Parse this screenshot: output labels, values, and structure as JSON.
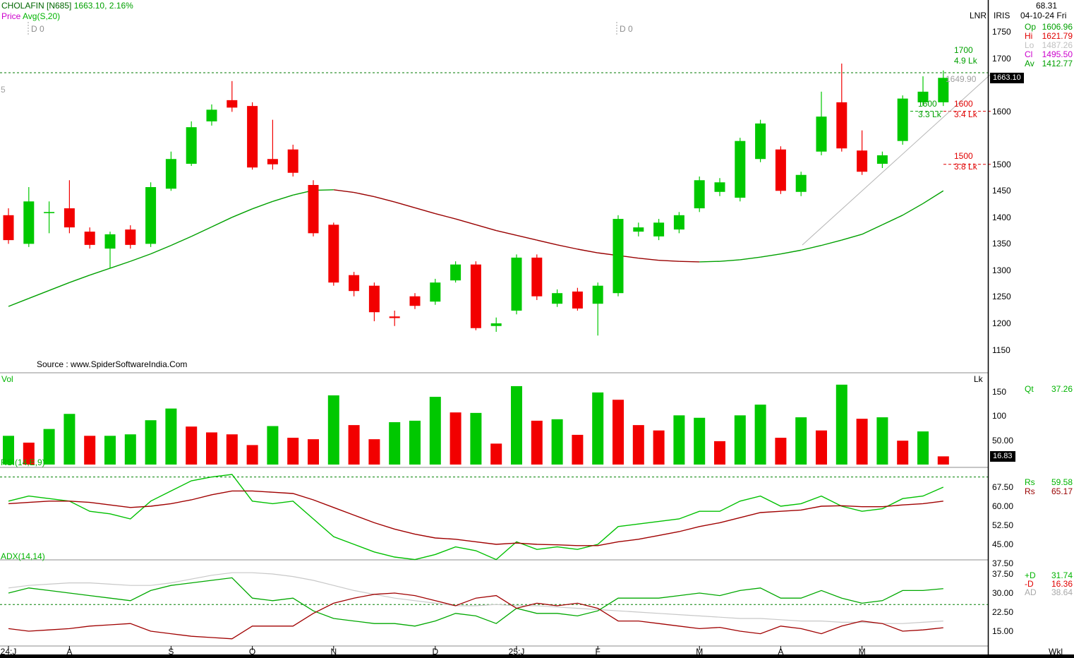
{
  "header": {
    "symbol": "CHOLAFIN [N685]",
    "last_price": "1663.10,",
    "change_pct": "2.16%",
    "indicator_label_price": "Price",
    "indicator_label_avg": "Avg(S,20)",
    "marker_left": "D 0",
    "marker_mid": "D 0",
    "left_digit": "5",
    "lnr_label": "LNR",
    "source": "Source : www.SpiderSoftwareIndia.Com"
  },
  "info_panel": {
    "value_top": "68.31",
    "mode": "IRIS",
    "date": "04-10-24 Fri",
    "rows": [
      {
        "label": "Op",
        "value": "1606.96",
        "color": "#00a000"
      },
      {
        "label": "Hi",
        "value": "1621.79",
        "color": "#e00000"
      },
      {
        "label": "Lo",
        "value": "1487.26",
        "color": "#c0c0c0"
      },
      {
        "label": "Cl",
        "value": "1495.50",
        "color": "#cc00cc"
      },
      {
        "label": "Av",
        "value": "1412.77",
        "color": "#00a000"
      }
    ]
  },
  "price_axis": {
    "badge": "1663.10",
    "ghost_label": "1649.90",
    "ticks": [
      1750,
      1700,
      1600,
      1500,
      1450,
      1400,
      1350,
      1300,
      1250,
      1200,
      1150
    ]
  },
  "levels": [
    {
      "price": "1700",
      "vol": "4.9 Lk",
      "color": "green"
    },
    {
      "price": "1600",
      "vol": "3.3 Lk",
      "color": "green"
    },
    {
      "price": "1600",
      "vol": "3.4 Lk",
      "color": "red"
    },
    {
      "price": "1500",
      "vol": "3.8 Lk",
      "color": "red"
    }
  ],
  "volume_panel": {
    "label": "Vol",
    "unit": "Lk",
    "badge": "16.83",
    "cursor_label": "Qt",
    "cursor_value": "37.26",
    "ticks": [
      {
        "v": 150,
        "t": "150"
      },
      {
        "v": 100,
        "t": "100"
      },
      {
        "v": 50,
        "t": "50.00"
      }
    ]
  },
  "rsi_panel": {
    "label": "RSI(14,E,9)",
    "ticks": [
      {
        "v": 67.5,
        "t": "67.50"
      },
      {
        "v": 60,
        "t": "60.00"
      },
      {
        "v": 52.5,
        "t": "52.50"
      },
      {
        "v": 45,
        "t": "45.00"
      },
      {
        "v": 37.5,
        "t": "37.50"
      }
    ],
    "readouts": [
      {
        "label": "Rs",
        "value": "59.58",
        "color": "#00b400"
      },
      {
        "label": "Rs",
        "value": "65.17",
        "color": "#990000"
      }
    ]
  },
  "adx_panel": {
    "label": "ADX(14,14)",
    "ticks": [
      {
        "v": 37.5,
        "t": "37.50"
      },
      {
        "v": 30,
        "t": "30.00"
      },
      {
        "v": 22.5,
        "t": "22.50"
      },
      {
        "v": 15,
        "t": "15.00"
      }
    ],
    "readouts": [
      {
        "label": "+D",
        "value": "31.74",
        "color": "#00b400"
      },
      {
        "label": "-D",
        "value": "16.36",
        "color": "#e00000"
      },
      {
        "label": "AD",
        "value": "38.64",
        "color": "#a8a8a8"
      }
    ]
  },
  "x_axis": {
    "periodicity": "Wkl"
  },
  "chart_data": {
    "type": "candlestick",
    "title": "CHOLAFIN [N685] weekly with Avg(S,20), Volume, RSI(14,E,9), ADX(14,14)",
    "periodicity": "weekly",
    "price_ylim_visible": [
      1107,
      1810
    ],
    "colors": {
      "up": "#00c800",
      "down": "#f20000",
      "ma_up": "#00a000",
      "ma_down": "#990000",
      "rsi": "#00c000",
      "rsi_signal": "#a00000",
      "plus_di": "#00a800",
      "minus_di": "#a00000",
      "adx": "#c8c8c8"
    },
    "candles_ohlc": [
      [
        1404,
        1417,
        1350,
        1357
      ],
      [
        1350,
        1457,
        1344,
        1430
      ],
      [
        1408,
        1430,
        1370,
        1410
      ],
      [
        1417,
        1470,
        1370,
        1381
      ],
      [
        1373,
        1381,
        1341,
        1348
      ],
      [
        1341,
        1373,
        1304,
        1368
      ],
      [
        1377,
        1385,
        1341,
        1348
      ],
      [
        1350,
        1466,
        1344,
        1457
      ],
      [
        1454,
        1524,
        1450,
        1510
      ],
      [
        1501,
        1581,
        1497,
        1570
      ],
      [
        1581,
        1613,
        1573,
        1603
      ],
      [
        1621,
        1657,
        1599,
        1607
      ],
      [
        1610,
        1617,
        1490,
        1494
      ],
      [
        1510,
        1584,
        1490,
        1500
      ],
      [
        1528,
        1537,
        1477,
        1484
      ],
      [
        1461,
        1470,
        1364,
        1370
      ],
      [
        1386,
        1390,
        1271,
        1277
      ],
      [
        1291,
        1297,
        1251,
        1261
      ],
      [
        1271,
        1277,
        1204,
        1221
      ],
      [
        1213,
        1224,
        1195,
        1210
      ],
      [
        1251,
        1257,
        1227,
        1233
      ],
      [
        1241,
        1284,
        1235,
        1277
      ],
      [
        1281,
        1317,
        1277,
        1311
      ],
      [
        1311,
        1317,
        1187,
        1191
      ],
      [
        1195,
        1211,
        1184,
        1200
      ],
      [
        1224,
        1330,
        1217,
        1324
      ],
      [
        1324,
        1330,
        1244,
        1251
      ],
      [
        1237,
        1264,
        1231,
        1257
      ],
      [
        1260,
        1267,
        1224,
        1228
      ],
      [
        1237,
        1277,
        1177,
        1271
      ],
      [
        1257,
        1404,
        1251,
        1397
      ],
      [
        1373,
        1390,
        1364,
        1381
      ],
      [
        1364,
        1397,
        1357,
        1390
      ],
      [
        1377,
        1410,
        1370,
        1404
      ],
      [
        1417,
        1477,
        1410,
        1470
      ],
      [
        1448,
        1474,
        1440,
        1466
      ],
      [
        1437,
        1550,
        1430,
        1544
      ],
      [
        1510,
        1584,
        1504,
        1577
      ],
      [
        1528,
        1534,
        1444,
        1450
      ],
      [
        1448,
        1486,
        1440,
        1480
      ],
      [
        1524,
        1637,
        1517,
        1590
      ],
      [
        1617,
        1690,
        1524,
        1530
      ],
      [
        1526,
        1564,
        1480,
        1486
      ],
      [
        1501,
        1524,
        1493,
        1517
      ],
      [
        1544,
        1630,
        1537,
        1624
      ],
      [
        1617,
        1666,
        1610,
        1637
      ],
      [
        1617,
        1677,
        1610,
        1663.1
      ]
    ],
    "ma20": [
      1232,
      1247,
      1262,
      1277,
      1291,
      1304,
      1317,
      1331,
      1347,
      1364,
      1382,
      1400,
      1416,
      1430,
      1442,
      1451,
      1452,
      1447,
      1439,
      1429,
      1418,
      1407,
      1397,
      1386,
      1375,
      1366,
      1357,
      1348,
      1340,
      1333,
      1328,
      1323,
      1319,
      1317,
      1316,
      1317,
      1320,
      1325,
      1331,
      1338,
      1347,
      1357,
      1368,
      1386,
      1404,
      1426,
      1450
    ],
    "volume": {
      "unit": "Lk",
      "values": [
        59,
        45,
        73,
        104,
        59,
        59,
        62,
        91,
        115,
        78,
        66,
        62,
        40,
        79,
        55,
        52,
        142,
        81,
        52,
        87,
        90,
        139,
        107,
        106,
        43,
        161,
        90,
        93,
        61,
        148,
        133,
        81,
        70,
        101,
        96,
        48,
        101,
        123,
        55,
        97,
        70,
        164,
        94,
        97,
        49,
        68,
        16.83
      ],
      "colors": [
        "g",
        "r",
        "g",
        "g",
        "r",
        "g",
        "g",
        "g",
        "g",
        "r",
        "r",
        "r",
        "r",
        "g",
        "r",
        "r",
        "g",
        "r",
        "r",
        "g",
        "g",
        "g",
        "r",
        "g",
        "r",
        "g",
        "r",
        "g",
        "r",
        "g",
        "r",
        "r",
        "r",
        "g",
        "g",
        "r",
        "g",
        "g",
        "r",
        "g",
        "r",
        "g",
        "r",
        "g",
        "r",
        "g",
        "r"
      ]
    },
    "rsi": {
      "period": "14,E,9",
      "rsi": [
        62,
        64,
        63,
        62,
        58,
        57,
        55,
        62,
        66,
        70,
        71.5,
        72.5,
        62,
        61,
        62,
        55,
        48,
        45,
        42,
        40,
        39,
        41,
        44,
        42.5,
        39,
        46,
        43,
        44,
        43,
        45,
        52,
        53,
        54,
        55,
        58,
        58,
        62,
        64,
        60,
        61,
        64,
        60,
        58,
        59,
        63,
        64,
        67.5
      ],
      "signal": [
        61,
        61.5,
        62,
        62,
        61.5,
        60.5,
        59.5,
        60,
        61,
        62.5,
        64.5,
        66,
        66,
        65.5,
        65,
        62.5,
        59.5,
        56.5,
        53.5,
        51,
        49,
        47.5,
        47,
        46,
        45,
        45.5,
        45,
        44.8,
        44.5,
        44.5,
        46,
        47,
        48.5,
        50,
        52,
        53.5,
        55.5,
        57.5,
        58,
        58.5,
        60,
        60.2,
        59.8,
        59.8,
        60.5,
        61,
        62
      ]
    },
    "adx": {
      "period": "14,14",
      "plus_di": [
        30,
        32,
        31,
        30,
        29,
        28,
        27,
        31,
        33,
        34,
        35,
        36,
        28,
        27,
        28,
        23,
        20,
        19,
        18,
        18,
        17,
        19,
        22,
        21,
        18,
        24,
        22,
        22,
        21,
        23,
        28,
        28,
        28,
        29,
        30,
        29,
        31,
        32,
        28,
        28,
        31,
        28,
        26,
        27,
        31,
        31,
        31.74
      ],
      "minus_di": [
        16,
        15,
        15.5,
        16,
        17,
        17.5,
        18,
        15,
        14,
        13,
        12.5,
        12,
        17,
        17,
        17,
        22,
        26,
        28,
        29.5,
        30,
        29,
        27,
        25,
        28,
        29,
        24,
        26,
        25,
        26,
        24,
        19,
        19,
        18,
        17,
        16,
        16.5,
        15,
        14,
        17,
        16,
        14,
        17,
        19,
        18,
        15,
        15.5,
        16.36
      ],
      "adx": [
        32,
        33,
        33.5,
        34,
        34,
        33.5,
        33,
        33,
        34,
        35.5,
        37,
        38,
        38,
        37.5,
        36.5,
        35,
        33,
        31,
        29.5,
        28,
        27,
        26,
        25,
        25,
        25.5,
        25,
        25,
        24.5,
        24,
        23.5,
        23,
        22.5,
        22,
        21.5,
        21,
        20.5,
        20,
        20,
        19.5,
        19,
        19,
        18.5,
        18.5,
        18,
        18,
        18.5,
        19
      ],
      "reference_level": 25.5
    },
    "rsi_reference_level": 71.5,
    "x_labels": [
      {
        "t": "24:J",
        "i": 0
      },
      {
        "t": "A",
        "i": 3
      },
      {
        "t": "S",
        "i": 8
      },
      {
        "t": "O",
        "i": 12
      },
      {
        "t": "N",
        "i": 16
      },
      {
        "t": "D",
        "i": 21
      },
      {
        "t": "25:J",
        "i": 25
      },
      {
        "t": "F",
        "i": 29
      },
      {
        "t": "M",
        "i": 34
      },
      {
        "t": "A",
        "i": 38
      },
      {
        "t": "M",
        "i": 42
      }
    ]
  }
}
